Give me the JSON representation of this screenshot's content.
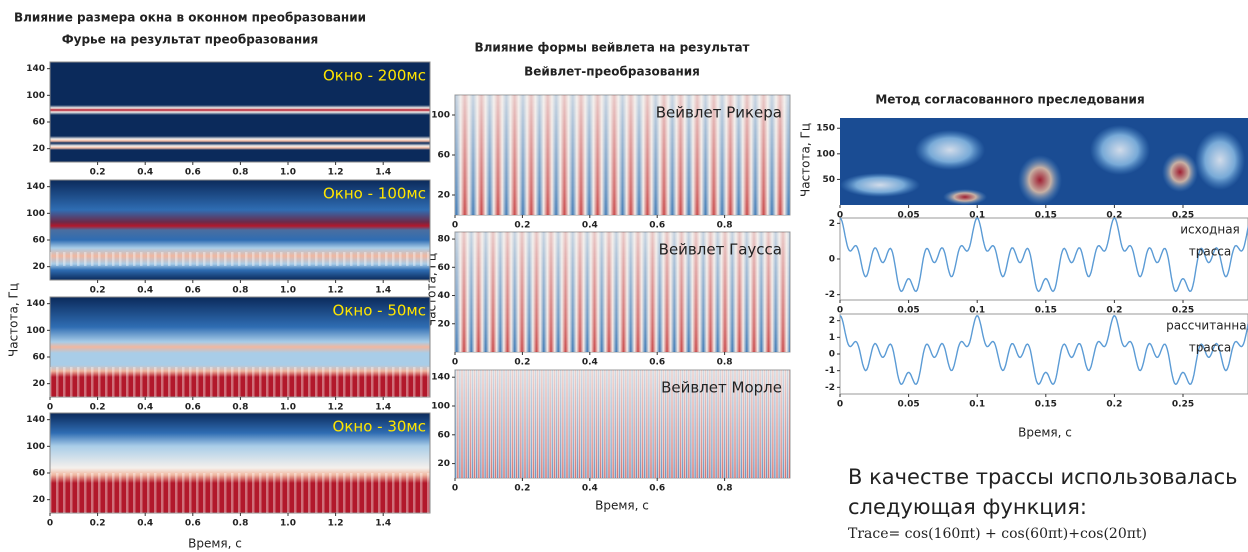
{
  "left": {
    "title": [
      "Влияние размера окна в оконном преобразовании",
      "Фурье на результат преобразования"
    ],
    "y_label": "Частота, Гц",
    "x_label": "Время, с",
    "panels": [
      {
        "label": "Окно - 200мс",
        "xticks": [
          "0.2",
          "0.4",
          "0.6",
          "0.8",
          "1.0",
          "1.2",
          "1.4"
        ],
        "yticks": [
          "140",
          "100",
          "60",
          "20"
        ]
      },
      {
        "label": "Окно - 100мс",
        "xticks": [
          "0.2",
          "0.4",
          "0.6",
          "0.8",
          "1.0",
          "1.2",
          "1.4"
        ],
        "yticks": [
          "140",
          "100",
          "60",
          "20"
        ]
      },
      {
        "label": "Окно - 50мс",
        "xticks": [
          "0",
          "0.2",
          "0.4",
          "0.6",
          "0.8",
          "1.0",
          "1.2",
          "1.4"
        ],
        "yticks": [
          "140",
          "100",
          "60",
          "20"
        ]
      },
      {
        "label": "Окно - 30мс",
        "xticks": [
          "0",
          "0.2",
          "0.4",
          "0.6",
          "0.8",
          "1.0",
          "1.2",
          "1.4"
        ],
        "yticks": [
          "140",
          "100",
          "60",
          "20"
        ]
      }
    ]
  },
  "middle": {
    "title": [
      "Влияние формы вейвлета на результат",
      "Вейвлет-преобразования"
    ],
    "y_label": "Частота, Гц",
    "x_label": "Время, с",
    "panels": [
      {
        "label": "Вейвлет Рикера",
        "xticks": [
          "0",
          "0.2",
          "0.4",
          "0.6",
          "0.8"
        ],
        "yticks": [
          "100",
          "60",
          "20"
        ]
      },
      {
        "label": "Вейвлет Гаусса",
        "xticks": [
          "0",
          "0.2",
          "0.4",
          "0.6",
          "0.8"
        ],
        "yticks": [
          "80",
          "60",
          "40",
          "20"
        ]
      },
      {
        "label": "Вейвлет Морле",
        "xticks": [
          "0",
          "0.2",
          "0.4",
          "0.6",
          "0.8"
        ],
        "yticks": [
          "140",
          "100",
          "60",
          "20"
        ]
      }
    ]
  },
  "right": {
    "title": "Метод согласованного преследования",
    "y_label": "Частота, Гц",
    "x_label": "Время, с",
    "spectrogram": {
      "xticks": [
        "0",
        "0.05",
        "0.1",
        "0.15",
        "0.2",
        "0.25"
      ],
      "yticks": [
        "150",
        "100",
        "50"
      ]
    },
    "traces": [
      {
        "label": [
          "исходная",
          "трасса"
        ],
        "xticks": [
          "0",
          "0.05",
          "0.1",
          "0.15",
          "0.2",
          "0.25"
        ],
        "yticks": [
          "2",
          "0",
          "-2"
        ]
      },
      {
        "label": [
          "рассчитанная",
          "трасса"
        ],
        "xticks": [
          "0",
          "0.05",
          "0.1",
          "0.15",
          "0.2",
          "0.25"
        ],
        "yticks": [
          "2",
          "1",
          "0",
          "-1",
          "-2"
        ]
      }
    ]
  },
  "note": {
    "lines": [
      "В качестве трассы использовалась",
      "следующая функция:"
    ],
    "formula": "Trace= cos(160πt) + cos(60πt)+cos(20πt)"
  }
}
